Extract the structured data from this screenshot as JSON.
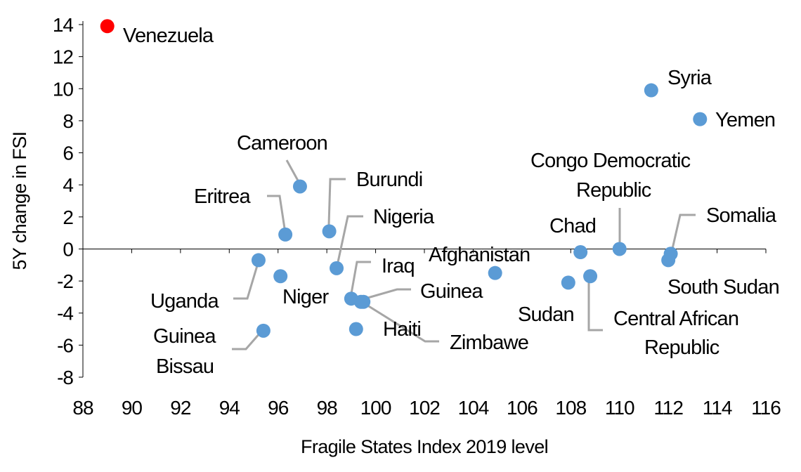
{
  "chart_data": {
    "type": "scatter",
    "xlabel": "Fragile States Index 2019 level",
    "ylabel": "5Y change in FSI",
    "xlim": [
      88,
      116
    ],
    "ylim": [
      -8,
      14
    ],
    "xticks": [
      88,
      90,
      92,
      94,
      96,
      98,
      100,
      102,
      104,
      106,
      108,
      110,
      112,
      114,
      116
    ],
    "yticks": [
      14,
      12,
      10,
      8,
      6,
      4,
      2,
      0,
      -2,
      -4,
      -6,
      -8
    ],
    "grid": false,
    "colors": {
      "default": "#5b9bd5",
      "highlight": "#ff0000",
      "leader": "#a6a6a6"
    },
    "points": [
      {
        "name": "Venezuela",
        "x": 89.0,
        "y": 13.9,
        "highlight": true
      },
      {
        "name": "Syria",
        "x": 111.3,
        "y": 9.9
      },
      {
        "name": "Yemen",
        "x": 113.3,
        "y": 8.1
      },
      {
        "name": "Cameroon",
        "x": 96.9,
        "y": 3.9
      },
      {
        "name": "Eritrea",
        "x": 96.3,
        "y": 0.9
      },
      {
        "name": "Burundi",
        "x": 98.1,
        "y": 1.1
      },
      {
        "name": "Nigeria",
        "x": 98.4,
        "y": -1.2
      },
      {
        "name": "Uganda",
        "x": 95.2,
        "y": -0.7
      },
      {
        "name": "Niger",
        "x": 96.1,
        "y": -1.7
      },
      {
        "name": "Iraq",
        "x": 99.0,
        "y": -3.1
      },
      {
        "name": "Guinea",
        "x": 99.4,
        "y": -3.3
      },
      {
        "name": "Zimbawe",
        "x": 99.5,
        "y": -3.3
      },
      {
        "name": "Haiti",
        "x": 99.2,
        "y": -5.0
      },
      {
        "name": "Guinea Bissau",
        "x": 95.4,
        "y": -5.1
      },
      {
        "name": "Afghanistan",
        "x": 104.9,
        "y": -1.5
      },
      {
        "name": "Chad",
        "x": 108.4,
        "y": -0.2
      },
      {
        "name": "Sudan",
        "x": 107.9,
        "y": -2.1
      },
      {
        "name": "Central African Republic",
        "x": 108.8,
        "y": -1.7
      },
      {
        "name": "Congo Democratic Republic",
        "x": 110.0,
        "y": 0.0
      },
      {
        "name": "Somalia",
        "x": 112.1,
        "y": -0.3
      },
      {
        "name": "South Sudan",
        "x": 112.0,
        "y": -0.7
      }
    ]
  }
}
